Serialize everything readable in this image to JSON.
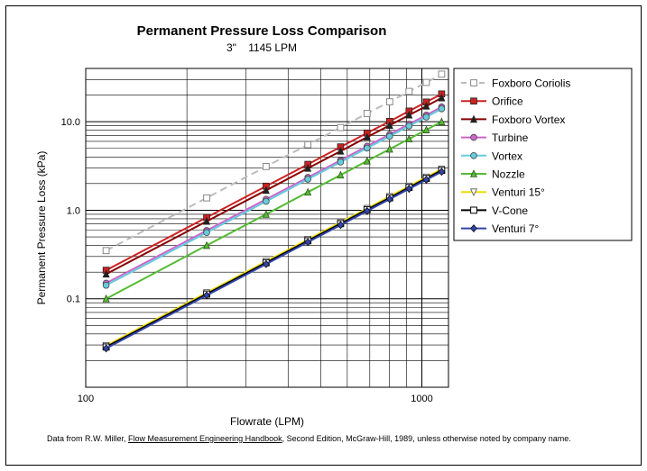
{
  "chart_data": {
    "type": "line",
    "title": "Permanent Pressure Loss Comparison",
    "subtitle": "3\"    1145 LPM",
    "xlabel": "Flowrate (LPM)",
    "ylabel": "Permanent Pressure Loss (kPa)",
    "xscale": "log",
    "yscale": "log",
    "xlim": [
      100,
      1200
    ],
    "ylim": [
      0.01,
      40
    ],
    "x_ticks": [
      100,
      1000
    ],
    "x_tick_labels": [
      "100",
      "1000"
    ],
    "y_ticks": [
      0.1,
      1.0,
      10.0
    ],
    "y_tick_labels": [
      "0.1",
      "1.0",
      "10.0"
    ],
    "grid": true,
    "legend_position": "right",
    "x": [
      115,
      229,
      344,
      458,
      573,
      687,
      802,
      916,
      1031,
      1145
    ],
    "series": [
      {
        "name": "Foxboro Coriolis",
        "color": "#bbbbbb",
        "dash": "dashed",
        "marker": "square-open",
        "values": [
          0.35,
          1.38,
          3.12,
          5.5,
          8.6,
          12.4,
          16.8,
          22.0,
          27.8,
          34.5
        ]
      },
      {
        "name": "Orifice",
        "color": "#cc2222",
        "dash": "solid",
        "marker": "square",
        "values": [
          0.21,
          0.83,
          1.87,
          3.3,
          5.2,
          7.45,
          10.1,
          13.2,
          16.7,
          20.6
        ]
      },
      {
        "name": "Foxboro Vortex",
        "color": "#880000",
        "dash": "solid",
        "marker": "triangle",
        "values": [
          0.19,
          0.75,
          1.68,
          2.98,
          4.65,
          6.7,
          9.1,
          11.9,
          15.0,
          18.6
        ]
      },
      {
        "name": "Turbine",
        "color": "#cc66cc",
        "dash": "solid",
        "marker": "circle",
        "values": [
          0.15,
          0.59,
          1.33,
          2.35,
          3.67,
          5.28,
          7.2,
          9.4,
          11.9,
          14.7
        ]
      },
      {
        "name": "Vortex",
        "color": "#66ccdd",
        "dash": "solid",
        "marker": "circle",
        "values": [
          0.142,
          0.56,
          1.26,
          2.24,
          3.5,
          5.03,
          6.85,
          8.95,
          11.3,
          14.0
        ]
      },
      {
        "name": "Nozzle",
        "color": "#55bb33",
        "dash": "solid",
        "marker": "triangle-open",
        "values": [
          0.1,
          0.4,
          0.9,
          1.6,
          2.5,
          3.6,
          4.9,
          6.4,
          8.1,
          10.0
        ]
      },
      {
        "name": "Venturi 15°",
        "color": "#eedd00",
        "dash": "solid",
        "marker": "triangle-down-open",
        "values": [
          0.0295,
          0.117,
          0.264,
          0.468,
          0.73,
          1.05,
          1.43,
          1.87,
          2.37,
          2.92
        ]
      },
      {
        "name": "V-Cone",
        "color": "#000000",
        "dash": "solid",
        "marker": "square-open",
        "values": [
          0.0285,
          0.113,
          0.255,
          0.452,
          0.705,
          1.015,
          1.38,
          1.81,
          2.29,
          2.82
        ]
      },
      {
        "name": "Venturi 7°",
        "color": "#3344aa",
        "dash": "solid",
        "marker": "diamond",
        "values": [
          0.0275,
          0.109,
          0.246,
          0.436,
          0.68,
          0.98,
          1.335,
          1.745,
          2.21,
          2.72
        ]
      }
    ]
  },
  "footnote": {
    "prefix": "Data from R.W. Miller, ",
    "book": "Flow Measurement Engineering Handbook",
    "suffix": ", Second Edition, McGraw-Hill, 1989, unless otherwise noted by company name."
  }
}
